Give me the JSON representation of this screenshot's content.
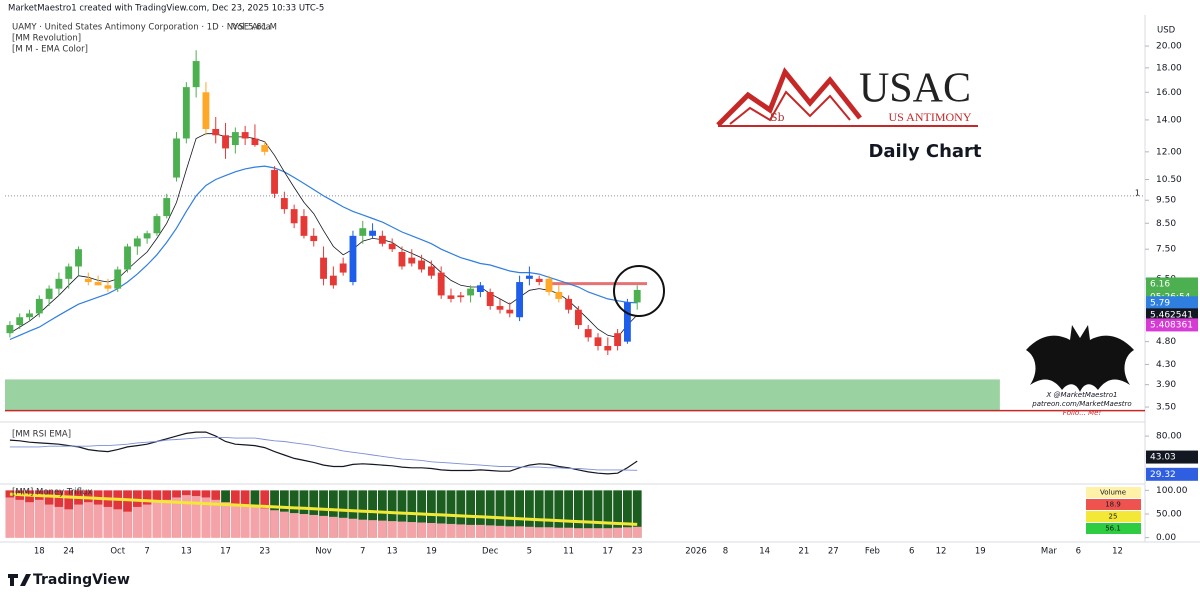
{
  "page": {
    "credit": "MarketMaestro1 created with TradingView.com, Dec 23, 2025 10:33 UTC-5",
    "indicators": [
      "[MM Revolution]",
      "[M M - EMA Color]"
    ],
    "currency": "USD",
    "logo": {
      "symbol": "Sb",
      "name": "USAC",
      "tagline": "US ANTIMONY"
    },
    "caption": "Daily Chart",
    "watermark": [
      "X @MarketMaestro1",
      "patreon.com/MarketMaestro",
      "Follo... Me!"
    ],
    "brand": "TradingView"
  },
  "chart_data": [
    {
      "type": "candlestick",
      "title": "UAMY · United States Antimony Corporation · 1D · NYSE Arca",
      "volume_label": "Vol",
      "volume": {
        "value": 5610000,
        "label": "5.61 M"
      },
      "log_scale": true,
      "xlim": [
        -0.5,
        115.5
      ],
      "xticks": [
        {
          "value": 3,
          "label": "18"
        },
        {
          "value": 6,
          "label": "24"
        },
        {
          "value": 11,
          "label": "Oct"
        },
        {
          "value": 14,
          "label": "7"
        },
        {
          "value": 18,
          "label": "13"
        },
        {
          "value": 22,
          "label": "17"
        },
        {
          "value": 26,
          "label": "23"
        },
        {
          "value": 32,
          "label": "Nov"
        },
        {
          "value": 36,
          "label": "7"
        },
        {
          "value": 39,
          "label": "13"
        },
        {
          "value": 43,
          "label": "19"
        },
        {
          "value": 49,
          "label": "Dec"
        },
        {
          "value": 53,
          "label": "5"
        },
        {
          "value": 57,
          "label": "11"
        },
        {
          "value": 61,
          "label": "17"
        },
        {
          "value": 64,
          "label": "23"
        },
        {
          "value": 70,
          "label": "2026"
        },
        {
          "value": 73,
          "label": "8"
        },
        {
          "value": 77,
          "label": "14"
        },
        {
          "value": 81,
          "label": "21"
        },
        {
          "value": 84,
          "label": "27"
        },
        {
          "value": 88,
          "label": "Feb"
        },
        {
          "value": 92,
          "label": "6"
        },
        {
          "value": 95,
          "label": "12"
        },
        {
          "value": 99,
          "label": "19"
        },
        {
          "value": 106,
          "label": "Mar"
        },
        {
          "value": 109,
          "label": "6"
        },
        {
          "value": 113,
          "label": "12"
        }
      ],
      "ylim": [
        3.32,
        23.8
      ],
      "yticks": [
        {
          "value": 20,
          "label": "20.00"
        },
        {
          "value": 18,
          "label": "18.00"
        },
        {
          "value": 16,
          "label": "16.00"
        },
        {
          "value": 14,
          "label": "14.00"
        },
        {
          "value": 12,
          "label": "12.00"
        },
        {
          "value": 10.5,
          "label": "10.50"
        },
        {
          "value": 9.5,
          "label": "9.50"
        },
        {
          "value": 8.5,
          "label": "8.50"
        },
        {
          "value": 7.5,
          "label": "7.50"
        },
        {
          "value": 6.5,
          "label": "6.50"
        },
        {
          "value": 4.8,
          "label": "4.80"
        },
        {
          "value": 4.3,
          "label": "4.30"
        },
        {
          "value": 3.9,
          "label": "3.90"
        },
        {
          "value": 3.5,
          "label": "3.50"
        }
      ],
      "open": [
        5.0,
        5.2,
        5.4,
        5.5,
        5.9,
        6.2,
        6.5,
        6.9,
        6.5,
        6.4,
        6.3,
        6.2,
        6.8,
        7.6,
        7.9,
        8.1,
        8.8,
        10.6,
        12.8,
        16.4,
        16.0,
        13.4,
        13.0,
        12.4,
        13.2,
        12.8,
        12.4,
        11.0,
        9.6,
        9.1,
        8.8,
        8.0,
        7.2,
        6.6,
        7.0,
        6.4,
        8.0,
        8.0,
        8.0,
        7.7,
        7.4,
        7.2,
        7.1,
        6.9,
        6.7,
        6.0,
        6.0,
        6.0,
        6.1,
        6.1,
        5.7,
        5.6,
        5.4,
        6.5,
        6.5,
        6.5,
        6.1,
        5.9,
        5.6,
        5.1,
        4.9,
        4.7,
        5.0,
        4.8,
        5.8
      ],
      "high": [
        5.3,
        5.5,
        5.6,
        6.0,
        6.3,
        6.7,
        7.0,
        7.6,
        6.7,
        6.6,
        6.5,
        6.9,
        7.7,
        8.0,
        8.2,
        8.9,
        9.8,
        13.2,
        16.8,
        19.6,
        16.8,
        14.2,
        13.8,
        13.5,
        13.6,
        13.7,
        12.6,
        11.2,
        9.9,
        9.3,
        9.1,
        8.3,
        7.6,
        6.9,
        7.2,
        8.2,
        8.6,
        8.5,
        8.2,
        7.9,
        7.6,
        7.5,
        7.3,
        7.1,
        6.9,
        6.2,
        6.1,
        6.3,
        6.4,
        6.2,
        5.9,
        5.8,
        6.6,
        6.9,
        6.6,
        6.6,
        6.3,
        6.0,
        5.7,
        5.2,
        5.0,
        4.9,
        5.1,
        5.9,
        6.3
      ],
      "low": [
        4.9,
        5.1,
        5.3,
        5.4,
        5.7,
        6.0,
        6.2,
        6.6,
        6.3,
        6.3,
        6.1,
        6.1,
        6.7,
        7.3,
        7.7,
        8.0,
        8.7,
        10.4,
        12.5,
        15.6,
        13.0,
        12.5,
        11.6,
        11.9,
        12.4,
        12.3,
        11.8,
        9.6,
        8.9,
        8.3,
        7.9,
        7.6,
        6.3,
        6.2,
        6.6,
        6.3,
        7.7,
        7.9,
        7.6,
        7.4,
        6.8,
        6.9,
        6.7,
        6.5,
        5.9,
        5.8,
        5.8,
        5.8,
        5.95,
        5.6,
        5.5,
        5.4,
        5.3,
        6.3,
        6.3,
        6.0,
        5.8,
        5.5,
        5.1,
        4.8,
        4.6,
        4.5,
        4.6,
        4.75,
        5.6
      ],
      "close": [
        5.2,
        5.4,
        5.5,
        5.9,
        6.2,
        6.5,
        6.9,
        7.5,
        6.4,
        6.3,
        6.2,
        6.8,
        7.6,
        7.9,
        8.1,
        8.8,
        9.6,
        12.8,
        16.4,
        18.6,
        13.4,
        13.0,
        12.2,
        13.2,
        12.8,
        12.4,
        12.0,
        9.8,
        9.1,
        8.5,
        8.0,
        7.8,
        6.5,
        6.3,
        6.7,
        8.0,
        8.3,
        8.2,
        7.7,
        7.5,
        6.9,
        7.0,
        6.8,
        6.6,
        6.0,
        5.9,
        5.95,
        6.2,
        6.3,
        5.7,
        5.6,
        5.5,
        6.4,
        6.6,
        6.4,
        6.1,
        5.9,
        5.6,
        5.2,
        4.9,
        4.7,
        4.6,
        4.7,
        5.8,
        6.16
      ],
      "colors": [
        "#4caf50",
        "#4caf50",
        "#4caf50",
        "#4caf50",
        "#4caf50",
        "#4caf50",
        "#4caf50",
        "#4caf50",
        "#ffa726",
        "#ffa726",
        "#ffa726",
        "#4caf50",
        "#4caf50",
        "#4caf50",
        "#4caf50",
        "#4caf50",
        "#4caf50",
        "#4caf50",
        "#4caf50",
        "#4caf50",
        "#ffa726",
        "#e53935",
        "#e53935",
        "#4caf50",
        "#e53935",
        "#e53935",
        "#ffa726",
        "#e53935",
        "#e53935",
        "#e53935",
        "#e53935",
        "#e53935",
        "#e53935",
        "#e53935",
        "#e53935",
        "#1e5eea",
        "#4caf50",
        "#1e5eea",
        "#e53935",
        "#e53935",
        "#e53935",
        "#e53935",
        "#e53935",
        "#e53935",
        "#e53935",
        "#e53935",
        "#e53935",
        "#4caf50",
        "#1e5eea",
        "#e53935",
        "#e53935",
        "#e53935",
        "#1e5eea",
        "#1e5eea",
        "#e53935",
        "#ffa726",
        "#ffa726",
        "#e53935",
        "#e53935",
        "#e53935",
        "#e53935",
        "#e53935",
        "#e53935",
        "#1e5eea",
        "#4caf50"
      ],
      "countdown": "05:26:54",
      "lines": [
        {
          "color": "#2f7fe0",
          "values": [
            4.85,
            4.95,
            5.05,
            5.15,
            5.3,
            5.45,
            5.6,
            5.75,
            5.85,
            5.95,
            6.05,
            6.2,
            6.4,
            6.65,
            6.95,
            7.3,
            7.75,
            8.3,
            9.0,
            9.7,
            10.2,
            10.5,
            10.7,
            10.9,
            11.05,
            11.15,
            11.2,
            11.1,
            10.9,
            10.6,
            10.3,
            10.0,
            9.7,
            9.45,
            9.2,
            9.0,
            8.85,
            8.7,
            8.55,
            8.35,
            8.15,
            8.0,
            7.85,
            7.7,
            7.5,
            7.35,
            7.2,
            7.1,
            7.0,
            6.95,
            6.85,
            6.75,
            6.7,
            6.7,
            6.65,
            6.55,
            6.45,
            6.35,
            6.25,
            6.1,
            6.0,
            5.9,
            5.85,
            5.8,
            5.79
          ]
        },
        {
          "color": "#131722",
          "values": [
            5.0,
            5.15,
            5.3,
            5.5,
            5.75,
            6.0,
            6.3,
            6.6,
            6.55,
            6.45,
            6.4,
            6.5,
            6.8,
            7.1,
            7.4,
            7.9,
            8.5,
            9.4,
            11.0,
            12.8,
            13.1,
            13.1,
            12.9,
            12.9,
            12.9,
            12.8,
            12.6,
            11.8,
            10.9,
            10.1,
            9.4,
            8.9,
            8.2,
            7.6,
            7.3,
            7.5,
            7.8,
            7.9,
            7.85,
            7.75,
            7.5,
            7.35,
            7.2,
            7.0,
            6.7,
            6.45,
            6.3,
            6.25,
            6.25,
            6.05,
            5.9,
            5.75,
            5.95,
            6.15,
            6.2,
            6.15,
            6.05,
            5.85,
            5.6,
            5.35,
            5.1,
            4.95,
            4.9,
            5.2,
            5.462541
          ]
        }
      ],
      "extra_labels": [
        {
          "value": 5.408361,
          "color": "#d63bd6"
        }
      ],
      "levels": [
        {
          "value": 9.7,
          "label": "1",
          "color": "#8a8f99"
        }
      ],
      "zone": {
        "from": 3.45,
        "to": 4.0,
        "end": 101,
        "color": "#8fcd97"
      },
      "support": {
        "value": 3.44,
        "color": "#c62828"
      },
      "resistance": {
        "value": 6.35,
        "start": 55,
        "end": 65,
        "color": "#e57373"
      }
    },
    {
      "type": "line",
      "title": "[MM RSI EMA]",
      "ylim": [
        12,
        92
      ],
      "yticks": [
        {
          "value": 80,
          "label": "80.00"
        }
      ],
      "series": [
        {
          "color": "#131722",
          "values": [
            74,
            73,
            71,
            70,
            69,
            68,
            66,
            64,
            60,
            58,
            57,
            60,
            64,
            66,
            68,
            72,
            76,
            80,
            84,
            86,
            86,
            80,
            72,
            68,
            67,
            66,
            63,
            57,
            52,
            47,
            44,
            41,
            37,
            35,
            35,
            38,
            39,
            38,
            37,
            36,
            34,
            33,
            33,
            32,
            30,
            29,
            29,
            29,
            30,
            29,
            28,
            28,
            33,
            37,
            39,
            38,
            35,
            33,
            30,
            27,
            25,
            24,
            25,
            33,
            43.03
          ]
        },
        {
          "color": "#7b8fd6",
          "values": [
            64,
            64,
            64,
            64,
            65,
            65,
            65,
            65,
            65,
            66,
            66,
            67,
            68,
            70,
            71,
            72,
            74,
            75,
            76,
            77,
            78,
            78,
            78,
            77,
            77,
            77,
            75,
            73,
            72,
            70,
            68,
            66,
            63,
            61,
            58,
            56,
            54,
            52,
            50,
            48,
            46,
            45,
            44,
            42,
            41,
            40,
            39,
            38,
            37,
            36,
            35,
            35,
            34,
            34,
            34,
            33,
            33,
            32,
            32,
            31,
            30,
            30,
            30,
            29.6,
            29.32
          ]
        }
      ],
      "label_colors": [
        "#131722",
        "#2f5fe0"
      ]
    },
    {
      "type": "bar",
      "title": "[MM] Money Triflux",
      "ylim": [
        -5,
        105
      ],
      "yticks": [
        {
          "value": 100,
          "label": "100.00"
        },
        {
          "value": 50,
          "label": "50.00"
        },
        {
          "value": 0,
          "label": "0.00"
        }
      ],
      "series": [
        {
          "color": "#e0353b",
          "values": [
            100,
            100,
            100,
            100,
            100,
            100,
            100,
            100,
            100,
            100,
            100,
            100,
            100,
            100,
            100,
            100,
            100,
            100,
            100,
            100,
            100,
            100,
            null,
            100,
            100,
            null,
            100,
            null,
            null,
            null,
            null,
            null,
            null,
            null,
            null,
            null,
            null,
            null,
            null,
            null,
            null,
            null,
            null,
            null,
            null,
            null,
            null,
            null,
            null,
            null,
            null,
            null,
            null,
            null,
            null,
            null,
            null,
            null,
            null,
            null,
            null,
            null,
            null,
            null,
            null
          ]
        },
        {
          "color": "#1b5e20",
          "values": [
            null,
            null,
            null,
            null,
            null,
            null,
            null,
            null,
            null,
            null,
            null,
            null,
            null,
            null,
            null,
            null,
            null,
            null,
            null,
            null,
            null,
            null,
            100,
            null,
            null,
            100,
            null,
            100,
            100,
            100,
            100,
            100,
            100,
            100,
            100,
            100,
            100,
            100,
            100,
            100,
            100,
            100,
            100,
            100,
            100,
            100,
            100,
            100,
            100,
            100,
            100,
            100,
            100,
            100,
            100,
            100,
            100,
            100,
            100,
            100,
            100,
            100,
            100,
            100,
            100
          ]
        },
        {
          "color": "#f4a3a8",
          "values": [
            85,
            80,
            75,
            80,
            70,
            65,
            60,
            70,
            75,
            70,
            65,
            60,
            55,
            65,
            70,
            75,
            80,
            85,
            90,
            88,
            85,
            80,
            75,
            70,
            68,
            65,
            62,
            58,
            55,
            52,
            50,
            48,
            46,
            44,
            42,
            40,
            38,
            37,
            36,
            35,
            34,
            33,
            32,
            31,
            30,
            29,
            28,
            27,
            27,
            26,
            25,
            24,
            24,
            23,
            22,
            22,
            21,
            21,
            20,
            20,
            20,
            20,
            21,
            22,
            23
          ]
        },
        {
          "color": "#f3e836",
          "values": [
            92,
            91,
            90,
            89,
            88,
            87,
            86,
            85,
            84,
            83,
            82,
            81,
            80,
            79,
            78,
            77,
            76,
            75,
            74,
            73,
            72,
            71,
            70,
            69,
            68,
            67,
            66,
            65,
            64,
            63,
            62,
            61,
            60,
            59,
            58,
            57,
            56,
            55,
            54,
            53,
            52,
            51,
            50,
            49,
            48,
            47,
            46,
            45,
            44,
            43,
            42,
            41,
            40,
            39,
            38,
            37,
            36,
            35,
            34,
            33,
            32,
            31,
            30,
            29,
            28
          ]
        }
      ],
      "table": {
        "header": "Volume",
        "rows": [
          {
            "value": 18.9,
            "color": "#ef5350"
          },
          {
            "value": 25,
            "color": "#f3e836"
          },
          {
            "value": 56.1,
            "color": "#2ecc40"
          }
        ]
      }
    }
  ]
}
